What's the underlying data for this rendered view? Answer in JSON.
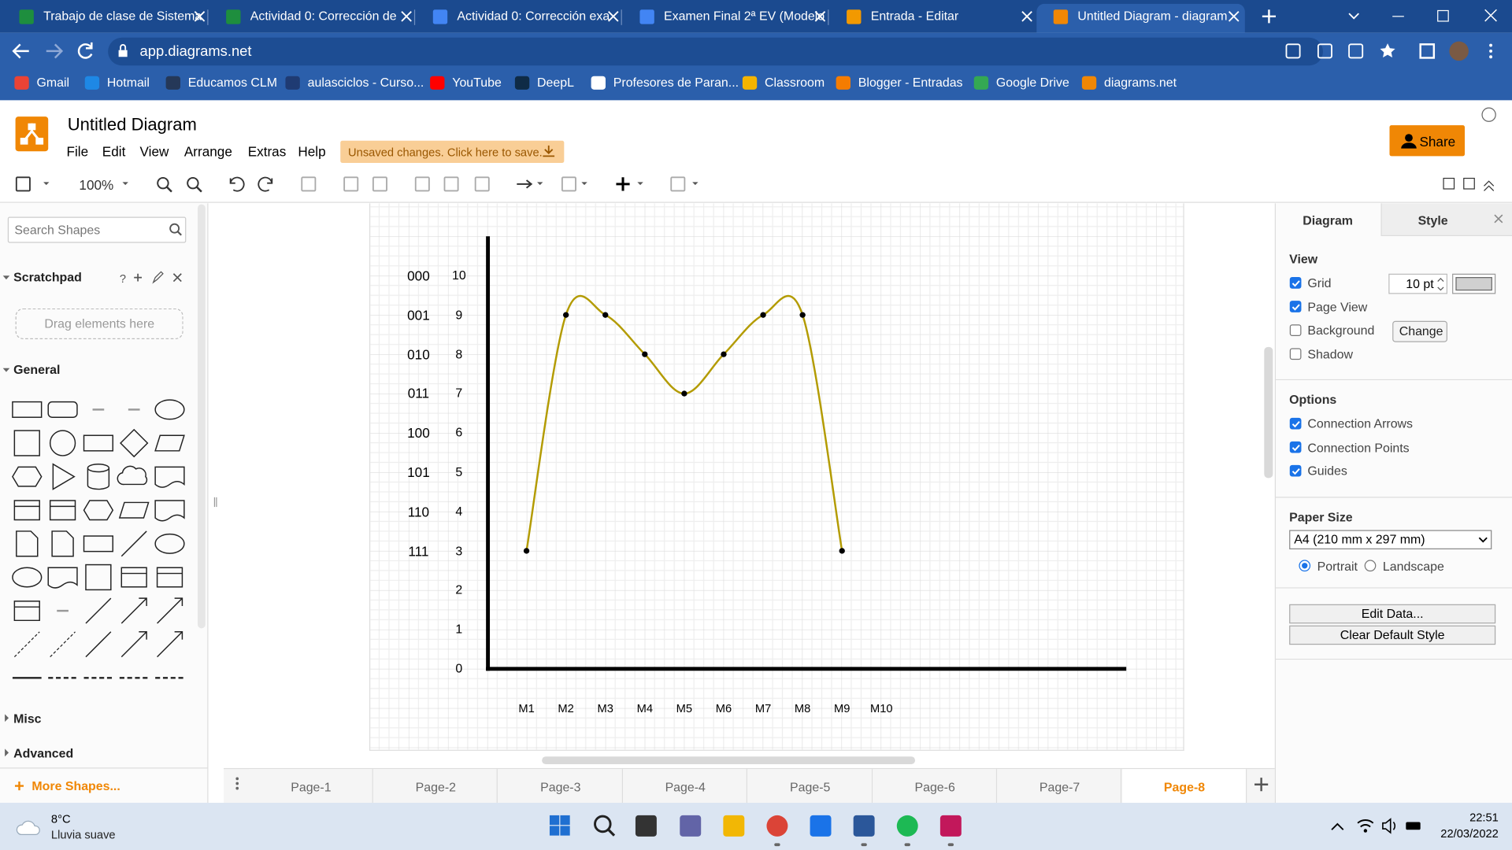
{
  "browser": {
    "tabs": [
      "Trabajo de clase de Sistema",
      "Actividad 0: Corrección de",
      "Actividad 0: Corrección exa",
      "Examen Final 2ª EV (Modelo",
      "Entrada - Editar",
      "Untitled Diagram - diagram"
    ],
    "url": "app.diagrams.net",
    "bookmarks": [
      "Gmail",
      "Hotmail",
      "Educamos CLM",
      "aulasciclos - Curso...",
      "YouTube",
      "DeepL",
      "Profesores de Paran...",
      "Classroom",
      "Blogger - Entradas",
      "Google Drive",
      "diagrams.net"
    ]
  },
  "app": {
    "title": "Untitled Diagram",
    "menu": [
      "File",
      "Edit",
      "View",
      "Arrange",
      "Extras",
      "Help"
    ],
    "save_notice": "Unsaved changes. Click here to save.",
    "share": "Share",
    "zoom": "100%"
  },
  "sidebar": {
    "search": "Search Shapes",
    "scratchpad": "Scratchpad",
    "scratchpad_help": "?",
    "drop_hint": "Drag elements here",
    "sections": [
      "General",
      "Misc",
      "Advanced"
    ],
    "more_shapes": "More Shapes..."
  },
  "canvas": {
    "type": "line",
    "categories": [
      "M1",
      "M2",
      "M3",
      "M4",
      "M5",
      "M6",
      "M7",
      "M8",
      "M9",
      "M10"
    ],
    "values": [
      3,
      9,
      9,
      8,
      7,
      8,
      9,
      9,
      3,
      null
    ],
    "color": "#b39b00",
    "ylim": [
      0,
      11
    ],
    "yticks": [
      0,
      1,
      2,
      3,
      4,
      5,
      6,
      7,
      8,
      9,
      10
    ],
    "code_ticks": [
      {
        "value": 10,
        "label": "000"
      },
      {
        "value": 9,
        "label": "001"
      },
      {
        "value": 8,
        "label": "010"
      },
      {
        "value": 7,
        "label": "011"
      },
      {
        "value": 6,
        "label": "100"
      },
      {
        "value": 5,
        "label": "101"
      },
      {
        "value": 4,
        "label": "110"
      },
      {
        "value": 3,
        "label": "111"
      }
    ]
  },
  "pages": [
    "Page-1",
    "Page-2",
    "Page-3",
    "Page-4",
    "Page-5",
    "Page-6",
    "Page-7",
    "Page-8"
  ],
  "active_page": 7,
  "format": {
    "tabs": [
      "Diagram",
      "Style"
    ],
    "view": "View",
    "grid_size": "10 pt",
    "change": "Change",
    "view_checks": [
      {
        "label": "Grid",
        "checked": true
      },
      {
        "label": "Page View",
        "checked": true
      },
      {
        "label": "Background",
        "checked": false
      },
      {
        "label": "Shadow",
        "checked": false
      }
    ],
    "options": "Options",
    "option_checks": [
      {
        "label": "Connection Arrows",
        "checked": true
      },
      {
        "label": "Connection Points",
        "checked": true
      },
      {
        "label": "Guides",
        "checked": true
      }
    ],
    "paper_size": "Paper Size",
    "paper": "A4 (210 mm x 297 mm)",
    "orientation": [
      {
        "label": "Portrait",
        "selected": true
      },
      {
        "label": "Landscape",
        "selected": false
      }
    ],
    "edit_data": "Edit Data...",
    "clear_style": "Clear Default Style"
  },
  "taskbar": {
    "temperature": "8°C",
    "weather": "Lluvia suave",
    "time": "22:51",
    "date": "22/03/2022"
  }
}
